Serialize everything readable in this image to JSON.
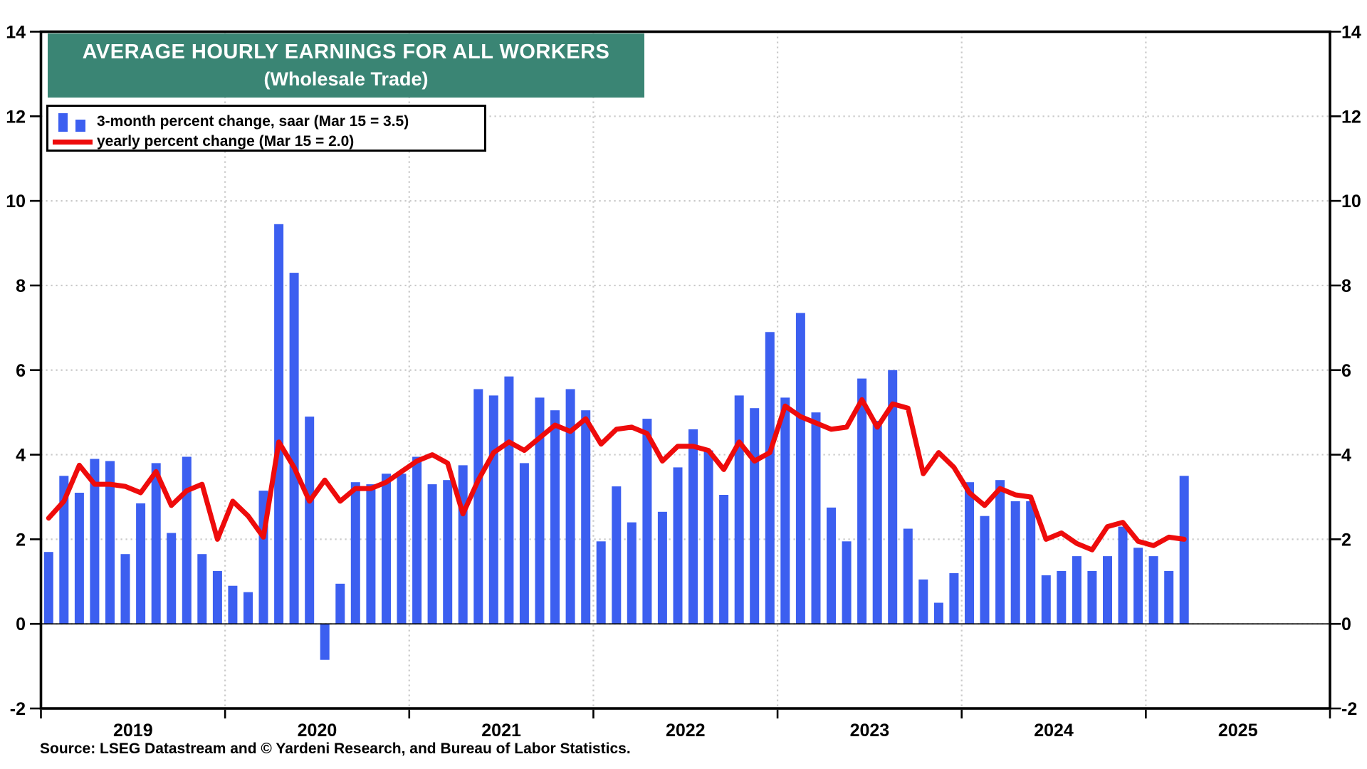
{
  "title": {
    "line1": "AVERAGE HOURLY EARNINGS FOR ALL WORKERS",
    "line2": "(Wholesale Trade)"
  },
  "legend": {
    "bar_label": "3-month percent change, saar (Mar 15 = 3.5)",
    "line_label": "yearly percent change (Mar 15 = 2.0)"
  },
  "source": "Source: LSEG Datastream and © Yardeni Research, and Bureau of Labor Statistics.",
  "colors": {
    "bar": "#3c5ff0",
    "line": "#ee0b0b",
    "title_bg": "#3a8574",
    "grid": "#c9c9c9",
    "frame": "#000000",
    "text": "#000000",
    "background": "#ffffff"
  },
  "chart_data": {
    "type": "bar+line",
    "title": "AVERAGE HOURLY EARNINGS FOR ALL WORKERS (Wholesale Trade)",
    "xlabel": "",
    "ylabel": "",
    "ylim": [
      -2,
      14
    ],
    "yticks": [
      -2,
      0,
      2,
      4,
      6,
      8,
      10,
      12,
      14
    ],
    "grid": true,
    "legend_position": "top-left",
    "year_labels": [
      "2019",
      "2020",
      "2021",
      "2022",
      "2023",
      "2024",
      "2025"
    ],
    "x": [
      "2019-01",
      "2019-02",
      "2019-03",
      "2019-04",
      "2019-05",
      "2019-06",
      "2019-07",
      "2019-08",
      "2019-09",
      "2019-10",
      "2019-11",
      "2019-12",
      "2020-01",
      "2020-02",
      "2020-03",
      "2020-04",
      "2020-05",
      "2020-06",
      "2020-07",
      "2020-08",
      "2020-09",
      "2020-10",
      "2020-11",
      "2020-12",
      "2021-01",
      "2021-02",
      "2021-03",
      "2021-04",
      "2021-05",
      "2021-06",
      "2021-07",
      "2021-08",
      "2021-09",
      "2021-10",
      "2021-11",
      "2021-12",
      "2022-01",
      "2022-02",
      "2022-03",
      "2022-04",
      "2022-05",
      "2022-06",
      "2022-07",
      "2022-08",
      "2022-09",
      "2022-10",
      "2022-11",
      "2022-12",
      "2023-01",
      "2023-02",
      "2023-03",
      "2023-04",
      "2023-05",
      "2023-06",
      "2023-07",
      "2023-08",
      "2023-09",
      "2023-10",
      "2023-11",
      "2023-12",
      "2024-01",
      "2024-02",
      "2024-03",
      "2024-04",
      "2024-05",
      "2024-06",
      "2024-07",
      "2024-08",
      "2024-09",
      "2024-10",
      "2024-11",
      "2024-12",
      "2025-01",
      "2025-02",
      "2025-03"
    ],
    "series": [
      {
        "name": "3-month percent change, saar",
        "type": "bar",
        "values": [
          1.7,
          3.5,
          3.1,
          3.9,
          3.85,
          1.65,
          2.85,
          3.8,
          2.15,
          3.95,
          1.65,
          1.25,
          0.9,
          0.75,
          3.15,
          9.45,
          8.3,
          4.9,
          -0.85,
          0.95,
          3.35,
          3.3,
          3.55,
          3.55,
          3.95,
          3.3,
          3.4,
          3.75,
          5.55,
          5.4,
          5.85,
          3.8,
          5.35,
          5.05,
          5.55,
          5.05,
          1.95,
          3.25,
          2.4,
          4.85,
          2.65,
          3.7,
          4.6,
          4.1,
          3.05,
          5.4,
          5.1,
          6.9,
          5.35,
          7.35,
          5.0,
          2.75,
          1.95,
          5.8,
          4.8,
          6.0,
          2.25,
          1.05,
          0.5,
          1.2,
          3.35,
          2.55,
          3.4,
          2.9,
          2.9,
          1.15,
          1.25,
          1.6,
          1.25,
          1.6,
          2.3,
          1.8,
          1.6,
          1.25,
          3.5
        ],
        "latest_label": "Mar 15 = 3.5"
      },
      {
        "name": "yearly percent change",
        "type": "line",
        "values": [
          2.5,
          2.9,
          3.75,
          3.3,
          3.3,
          3.25,
          3.1,
          3.6,
          2.8,
          3.15,
          3.3,
          2.0,
          2.9,
          2.55,
          2.05,
          4.3,
          3.7,
          2.9,
          3.4,
          2.9,
          3.2,
          3.2,
          3.35,
          3.6,
          3.85,
          4.0,
          3.8,
          2.6,
          3.4,
          4.05,
          4.3,
          4.1,
          4.4,
          4.7,
          4.55,
          4.85,
          4.25,
          4.6,
          4.65,
          4.5,
          3.85,
          4.2,
          4.2,
          4.1,
          3.65,
          4.3,
          3.85,
          4.05,
          5.15,
          4.9,
          4.75,
          4.6,
          4.65,
          5.3,
          4.65,
          5.2,
          5.1,
          3.55,
          4.05,
          3.7,
          3.1,
          2.8,
          3.2,
          3.05,
          3.0,
          2.0,
          2.15,
          1.9,
          1.75,
          2.3,
          2.4,
          1.95,
          1.85,
          2.05,
          2.0
        ],
        "latest_label": "Mar 15 = 2.0"
      }
    ]
  }
}
